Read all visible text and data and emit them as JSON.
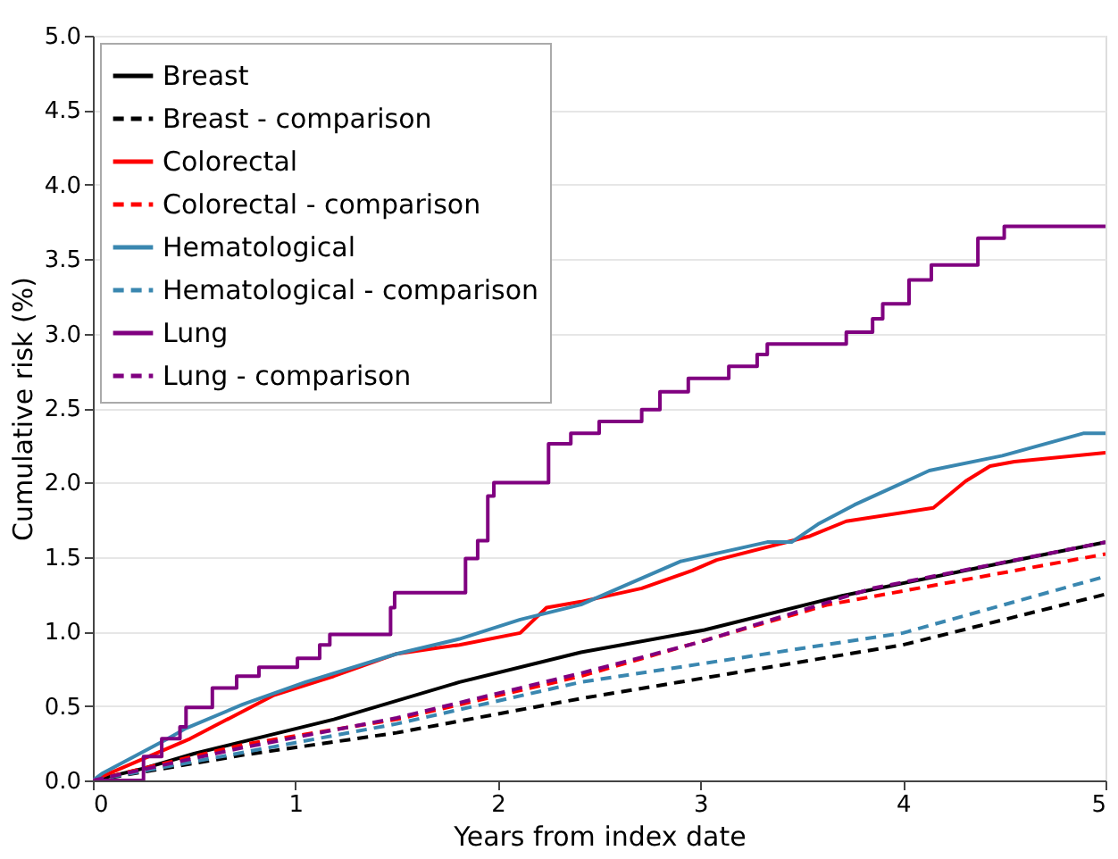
{
  "chart_data": {
    "type": "line",
    "xlabel": "Years from index date",
    "ylabel": "Cumulative risk (%)",
    "xlim": [
      0,
      5
    ],
    "xticks": [
      0,
      1,
      2,
      3,
      4,
      5
    ],
    "ylim": [
      0,
      5
    ],
    "yticks": [
      {
        "value": 0,
        "label": "0.0"
      },
      {
        "value": 0.5,
        "label": "0.5"
      },
      {
        "value": 1,
        "label": "1.0"
      },
      {
        "value": 1.5,
        "label": "1.5"
      },
      {
        "value": 2,
        "label": "2.0"
      },
      {
        "value": 2.5,
        "label": "2.5"
      },
      {
        "value": 3,
        "label": "3.0"
      },
      {
        "value": 3.5,
        "label": "3.5"
      },
      {
        "value": 4,
        "label": "4.0"
      },
      {
        "value": 4.5,
        "label": "4.5"
      },
      {
        "value": 5,
        "label": "5.0"
      }
    ],
    "grid": "y",
    "legend": "top left",
    "series": [
      {
        "name": "Breast",
        "color": "#000000",
        "line_style": "solid",
        "x": [
          0,
          0.25,
          0.5,
          1.19,
          1.81,
          2.41,
          3.02,
          3.7,
          4.31,
          5
        ],
        "values": [
          0,
          0.08,
          0.18,
          0.41,
          0.66,
          0.86,
          1.01,
          1.24,
          1.41,
          1.6
        ]
      },
      {
        "name": "Breast - comparison",
        "color": "#000000",
        "line_style": "dashed",
        "x": [
          0,
          0.74,
          1.5,
          2.41,
          4.0,
          5
        ],
        "values": [
          0,
          0.17,
          0.32,
          0.55,
          0.91,
          1.25
        ]
      },
      {
        "name": "Colorectal",
        "color": "#ff0000",
        "line_style": "solid",
        "x": [
          0,
          0.48,
          0.89,
          1.19,
          1.5,
          1.81,
          2.11,
          2.24,
          2.41,
          2.71,
          2.96,
          3.08,
          3.54,
          3.72,
          4.15,
          4.31,
          4.43,
          4.55,
          5
        ],
        "values": [
          0,
          0.28,
          0.57,
          0.7,
          0.85,
          0.91,
          0.99,
          1.16,
          1.2,
          1.29,
          1.41,
          1.48,
          1.64,
          1.74,
          1.83,
          2.01,
          2.11,
          2.14,
          2.2
        ]
      },
      {
        "name": "Colorectal - comparison",
        "color": "#ff0000",
        "line_style": "dashed",
        "x": [
          0,
          0.74,
          1.5,
          2.41,
          3.63,
          5
        ],
        "values": [
          0,
          0.24,
          0.41,
          0.7,
          1.18,
          1.52
        ]
      },
      {
        "name": "Hematological",
        "color": "#3a87b0",
        "line_style": "solid",
        "x": [
          0,
          0.05,
          0.37,
          0.46,
          0.74,
          1.05,
          1.5,
          1.81,
          2.11,
          2.41,
          2.9,
          3.33,
          3.45,
          3.58,
          3.76,
          4.13,
          4.49,
          4.89,
          5
        ],
        "values": [
          0,
          0.05,
          0.28,
          0.35,
          0.51,
          0.66,
          0.85,
          0.95,
          1.08,
          1.18,
          1.47,
          1.6,
          1.6,
          1.72,
          1.85,
          2.08,
          2.18,
          2.33,
          2.33
        ]
      },
      {
        "name": "Hematological - comparison",
        "color": "#3a87b0",
        "line_style": "dashed",
        "x": [
          0,
          1.5,
          2.41,
          4.0,
          5
        ],
        "values": [
          0,
          0.38,
          0.66,
          0.99,
          1.37
        ]
      },
      {
        "name": "Lung",
        "color": "#800080",
        "line_style": "solid",
        "type": "step",
        "x": [
          0,
          0.25,
          0.34,
          0.43,
          0.46,
          0.59,
          0.71,
          0.82,
          1.01,
          1.12,
          1.17,
          1.38,
          1.47,
          1.49,
          1.81,
          1.84,
          1.9,
          1.95,
          1.98,
          2.22,
          2.25,
          2.36,
          2.5,
          2.71,
          2.8,
          2.94,
          3.14,
          3.28,
          3.33,
          3.72,
          3.85,
          3.9,
          4.03,
          4.14,
          4.37,
          4.5,
          5
        ],
        "values": [
          0,
          0.16,
          0.28,
          0.36,
          0.49,
          0.62,
          0.7,
          0.76,
          0.82,
          0.91,
          0.98,
          0.98,
          1.16,
          1.26,
          1.26,
          1.49,
          1.61,
          1.91,
          2.0,
          2.0,
          2.26,
          2.33,
          2.41,
          2.49,
          2.61,
          2.7,
          2.78,
          2.86,
          2.93,
          3.01,
          3.1,
          3.2,
          3.36,
          3.46,
          3.64,
          3.72,
          3.72
        ]
      },
      {
        "name": "Lung - comparison",
        "color": "#800080",
        "line_style": "dashed",
        "x": [
          0,
          0.74,
          1.5,
          2.41,
          3.0,
          3.85,
          5
        ],
        "values": [
          0,
          0.22,
          0.42,
          0.72,
          0.93,
          1.29,
          1.6
        ]
      }
    ]
  }
}
